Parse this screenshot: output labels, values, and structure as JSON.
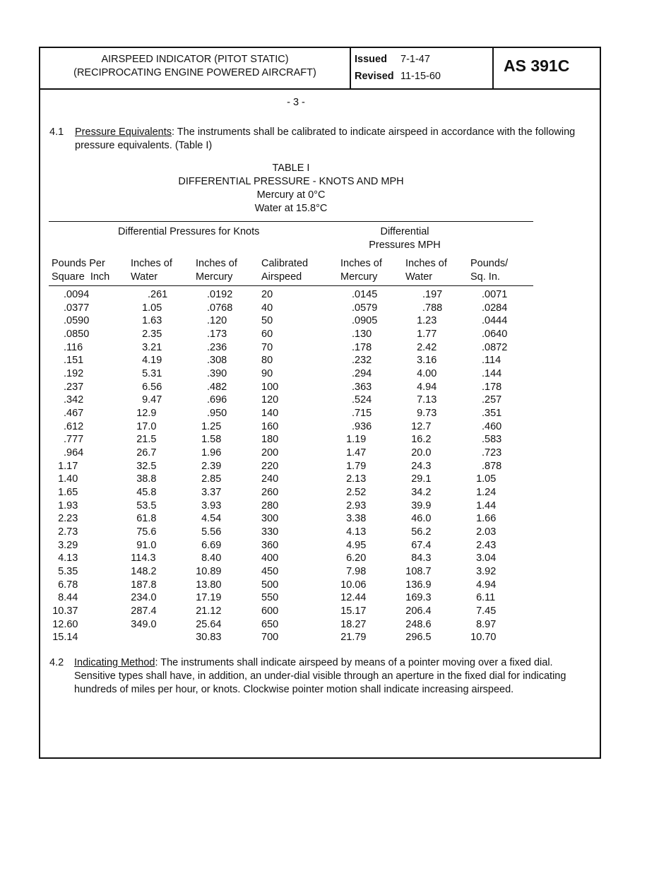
{
  "header": {
    "title_lines": [
      "AIRSPEED INDICATOR (PITOT STATIC)",
      "(RECIPROCATING ENGINE POWERED AIRCRAFT)"
    ],
    "issued_label": "Issued",
    "issued": "7-1-47",
    "revised_label": "Revised",
    "revised": "11-15-60",
    "doc_id": "AS 391C"
  },
  "page_number": "- 3 -",
  "section_4_1": {
    "number": "4.1",
    "heading": "Pressure Equivalents",
    "text": ": The instruments shall be calibrated to indicate airspeed in accordance with the following pressure equivalents. (Table I)"
  },
  "table": {
    "title_lines": [
      "TABLE I",
      "DIFFERENTIAL PRESSURE - KNOTS AND MPH",
      "Mercury at 0°C",
      "Water at 15.8°C"
    ],
    "group_knots": "Differential Pressures for Knots",
    "group_mph": [
      "Differential",
      "Pressures MPH"
    ],
    "columns": [
      [
        "Pounds Per",
        "Square  Inch"
      ],
      [
        "Inches of",
        "Water"
      ],
      [
        "Inches of",
        "Mercury"
      ],
      [
        "Calibrated",
        "Airspeed"
      ],
      [
        "Inches of",
        "Mercury"
      ],
      [
        "Inches of",
        "Water"
      ],
      [
        "Pounds/",
        "Sq. In."
      ]
    ],
    "rows": [
      [
        ".0094",
        ".261",
        ".0192",
        "20",
        ".0145",
        ".197",
        ".0071"
      ],
      [
        ".0377",
        "1.05",
        ".0768",
        "40",
        ".0579",
        ".788",
        ".0284"
      ],
      [
        ".0590",
        "1.63",
        ".120",
        "50",
        ".0905",
        "1.23",
        ".0444"
      ],
      [
        ".0850",
        "2.35",
        ".173",
        "60",
        ".130",
        "1.77",
        ".0640"
      ],
      [
        ".116",
        "3.21",
        ".236",
        "70",
        ".178",
        "2.42",
        ".0872"
      ],
      [
        ".151",
        "4.19",
        ".308",
        "80",
        ".232",
        "3.16",
        ".114"
      ],
      [
        ".192",
        "5.31",
        ".390",
        "90",
        ".294",
        "4.00",
        ".144"
      ],
      [
        ".237",
        "6.56",
        ".482",
        "100",
        ".363",
        "4.94",
        ".178"
      ],
      [
        ".342",
        "9.47",
        ".696",
        "120",
        ".524",
        "7.13",
        ".257"
      ],
      [
        ".467",
        "12.9",
        ".950",
        "140",
        ".715",
        "9.73",
        ".351"
      ],
      [
        ".612",
        "17.0",
        "1.25",
        "160",
        ".936",
        "12.7",
        ".460"
      ],
      [
        ".777",
        "21.5",
        "1.58",
        "180",
        "1.19",
        "16.2",
        ".583"
      ],
      [
        ".964",
        "26.7",
        "1.96",
        "200",
        "1.47",
        "20.0",
        ".723"
      ],
      [
        "1.17",
        "32.5",
        "2.39",
        "220",
        "1.79",
        "24.3",
        ".878"
      ],
      [
        "1.40",
        "38.8",
        "2.85",
        "240",
        "2.13",
        "29.1",
        "1.05"
      ],
      [
        "1.65",
        "45.8",
        "3.37",
        "260",
        "2.52",
        "34.2",
        "1.24"
      ],
      [
        "1.93",
        "53.5",
        "3.93",
        "280",
        "2.93",
        "39.9",
        "1.44"
      ],
      [
        "2.23",
        "61.8",
        "4.54",
        "300",
        "3.38",
        "46.0",
        "1.66"
      ],
      [
        "2.73",
        "75.6",
        "5.56",
        "330",
        "4.13",
        "56.2",
        "2.03"
      ],
      [
        "3.29",
        "91.0",
        "6.69",
        "360",
        "4.95",
        "67.4",
        "2.43"
      ],
      [
        "4.13",
        "114.3",
        "8.40",
        "400",
        "6.20",
        "84.3",
        "3.04"
      ],
      [
        "5.35",
        "148.2",
        "10.89",
        "450",
        "7.98",
        "108.7",
        "3.92"
      ],
      [
        "6.78",
        "187.8",
        "13.80",
        "500",
        "10.06",
        "136.9",
        "4.94"
      ],
      [
        "8.44",
        "234.0",
        "17.19",
        "550",
        "12.44",
        "169.3",
        "6.11"
      ],
      [
        "10.37",
        "287.4",
        "21.12",
        "600",
        "15.17",
        "206.4",
        "7.45"
      ],
      [
        "12.60",
        "349.0",
        "25.64",
        "650",
        "18.27",
        "248.6",
        "8.97"
      ],
      [
        "15.14",
        null,
        "30.83",
        "700",
        "21.79",
        "296.5",
        "10.70"
      ]
    ]
  },
  "section_4_2": {
    "number": "4.2",
    "heading": "Indicating Method",
    "text": ": The instruments shall indicate airspeed by means of a pointer moving over a fixed dial. Sensitive types shall have, in addition, an under-dial visible through an aperture in the fixed dial for indicating hundreds of miles per hour, or knots. Clockwise pointer motion shall indicate increasing airspeed."
  }
}
